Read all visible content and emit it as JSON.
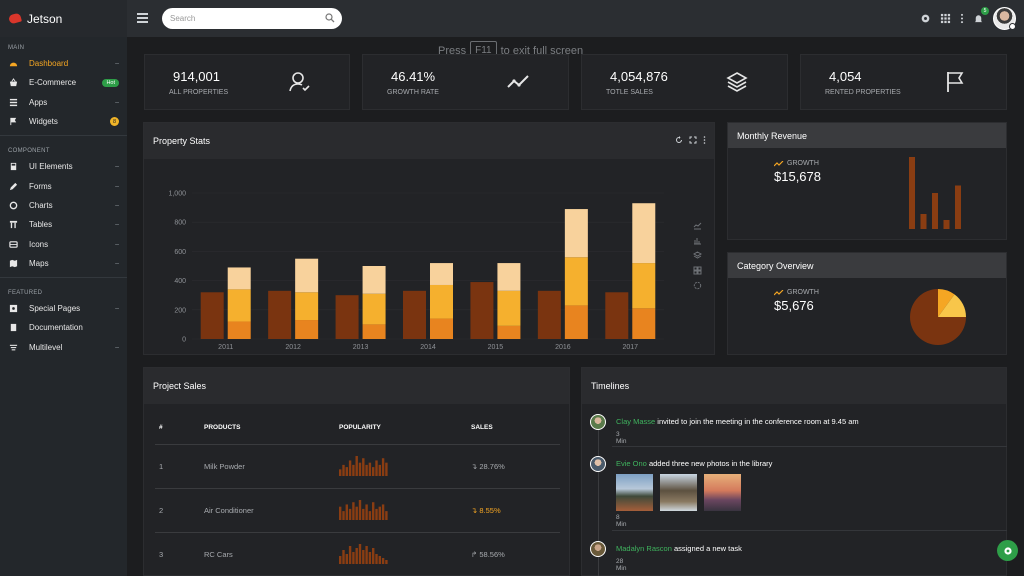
{
  "brand": "Jetson",
  "sidebar": {
    "sections": [
      "MAIN",
      "COMPONENT",
      "FEATURED"
    ],
    "main": [
      {
        "label": "Dashboard",
        "icon": "dashboard-icon",
        "active": true
      },
      {
        "label": "E-Commerce",
        "icon": "basket-icon",
        "badge": "Hot"
      },
      {
        "label": "Apps",
        "icon": "list-icon"
      },
      {
        "label": "Widgets",
        "icon": "flag-icon",
        "badge": "8"
      }
    ],
    "component": [
      {
        "label": "UI Elements",
        "icon": "layers-icon"
      },
      {
        "label": "Forms",
        "icon": "pencil-icon"
      },
      {
        "label": "Charts",
        "icon": "circle-icon"
      },
      {
        "label": "Tables",
        "icon": "table-icon"
      },
      {
        "label": "Icons",
        "icon": "icons-icon"
      },
      {
        "label": "Maps",
        "icon": "map-icon"
      }
    ],
    "featured": [
      {
        "label": "Special Pages",
        "icon": "puzzle-icon"
      },
      {
        "label": "Documentation",
        "icon": "book-icon"
      },
      {
        "label": "Multilevel",
        "icon": "menu-icon"
      }
    ]
  },
  "topbar": {
    "search_placeholder": "Search",
    "notification_count": "5"
  },
  "fullscreen_hint": {
    "pre": "Press",
    "key": "F11",
    "post": "to exit full screen"
  },
  "stats": [
    {
      "value": "914,001",
      "label": "ALL PROPERTIES",
      "icon": "user-check-icon"
    },
    {
      "value": "46.41%",
      "label": "GROWTH RATE",
      "icon": "trend-line-icon"
    },
    {
      "value": "4,054,876",
      "label": "TOTLE SALES",
      "icon": "stack-icon"
    },
    {
      "value": "4,054",
      "label": "RENTED PROPERTIES",
      "icon": "flag-icon"
    }
  ],
  "property_stats": {
    "title": "Property Stats"
  },
  "chart_data": {
    "type": "bar",
    "categories": [
      "2011",
      "2012",
      "2013",
      "2014",
      "2015",
      "2016",
      "2017"
    ],
    "series": [
      {
        "values": [
          320,
          330,
          300,
          330,
          390,
          330,
          320
        ],
        "color": "#7a3410"
      },
      {
        "values": [
          120,
          130,
          100,
          140,
          90,
          230,
          210
        ],
        "color": "#e8841f"
      },
      {
        "values": [
          220,
          190,
          210,
          230,
          240,
          330,
          310
        ],
        "color": "#f5b02e"
      },
      {
        "values": [
          150,
          230,
          190,
          150,
          190,
          330,
          410
        ],
        "color": "#f8d29c"
      }
    ],
    "y_ticks": [
      "1,000",
      "800",
      "600",
      "400",
      "200",
      "0"
    ],
    "ylim": [
      0,
      1000
    ]
  },
  "monthly_revenue": {
    "title": "Monthly Revenue",
    "growth_label": "GROWTH",
    "value": "$15,678",
    "bars": [
      480,
      100,
      240,
      60,
      290
    ]
  },
  "category_overview": {
    "title": "Category Overview",
    "growth_label": "GROWTH",
    "value": "$5,676",
    "pie": [
      {
        "value": 10,
        "color": "#f5a623"
      },
      {
        "value": 15,
        "color": "#f8c64a"
      },
      {
        "value": 75,
        "color": "#7a3410"
      }
    ]
  },
  "project_sales": {
    "title": "Project Sales",
    "headers": [
      "#",
      "PRODUCTS",
      "POPULARITY",
      "SALES"
    ],
    "rows": [
      {
        "n": "1",
        "product": "Milk Powder",
        "sales": "28.76%",
        "trend": "down",
        "spark": [
          3,
          5,
          4,
          7,
          5,
          9,
          6,
          8,
          5,
          6,
          4,
          7,
          5,
          8,
          6
        ]
      },
      {
        "n": "2",
        "product": "Air Conditioner",
        "sales": "8.55%",
        "trend": "down-orange",
        "spark": [
          6,
          4,
          7,
          5,
          8,
          6,
          9,
          5,
          7,
          4,
          8,
          5,
          6,
          7,
          4
        ]
      },
      {
        "n": "3",
        "product": "RC Cars",
        "sales": "58.56%",
        "trend": "up",
        "spark": [
          4,
          7,
          5,
          9,
          6,
          8,
          10,
          7,
          9,
          6,
          8,
          5,
          4,
          3,
          2
        ]
      }
    ]
  },
  "timelines": {
    "title": "Timelines",
    "items": [
      {
        "who": "Clay Masse",
        "text": "invited to join the meeting in the conference room at 9.45 am",
        "time": "3 Min"
      },
      {
        "who": "Evie Ono",
        "text": "added three new photos in the library",
        "time": "8 Min"
      },
      {
        "who": "Madalyn Rascon",
        "text": "assigned a new task",
        "time": "28 Min"
      }
    ]
  }
}
